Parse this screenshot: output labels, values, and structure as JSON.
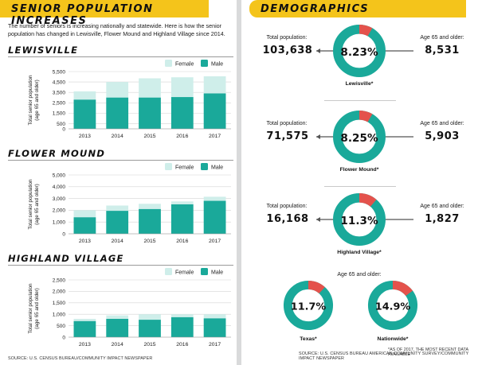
{
  "left": {
    "banner": "SENIOR POPULATION INCREASES",
    "intro": "The number of seniors is increasing nationally and statewide. Here is how the senior population has changed in Lewisville, Flower Mound and Highland Village since 2014.",
    "footer": "SOURCE: U.S. CENSUS BUREAU/COMMUNITY IMPACT NEWSPAPER"
  },
  "right": {
    "banner": "DEMOGRAPHICS",
    "footnote": "*AS OF 2017, THE MOST RECENT DATA AVAILABLE",
    "footer": "SOURCE: U.S. CENSUS BUREAU AMERICAN COMMUNITY SURVEY/COMMUNITY IMPACT NEWSPAPER",
    "labels": {
      "total_population": "Total population:",
      "age65": "Age 65 and older:",
      "age65_center": "Age 65 and older:"
    },
    "cities": [
      {
        "name": "Lewisville*",
        "total": "103,638",
        "percent_label": "8.23%",
        "percent": 8.23,
        "age65": "8,531"
      },
      {
        "name": "Flower Mound*",
        "total": "71,575",
        "percent_label": "8.25%",
        "percent": 8.25,
        "age65": "5,903"
      },
      {
        "name": "Highland Village*",
        "total": "16,168",
        "percent_label": "11.3%",
        "percent": 11.3,
        "age65": "1,827"
      }
    ],
    "comparisons": [
      {
        "name": "Texas*",
        "percent_label": "11.7%",
        "percent": 11.7
      },
      {
        "name": "Nationwide*",
        "percent_label": "14.9%",
        "percent": 14.9
      }
    ]
  },
  "colors": {
    "banner": "#f4c41b",
    "male": "#1aa99a",
    "female": "#cfeeea",
    "ring": "#1aa99a",
    "ring_highlight": "#e4524c",
    "arrow": "#555555"
  },
  "legend": {
    "female": "Female",
    "male": "Male"
  },
  "chart_data": [
    {
      "type": "bar",
      "title": "LEWISVILLE",
      "ylabel": "Total senior population (age 65 and older)",
      "categories": [
        "2013",
        "2014",
        "2015",
        "2016",
        "2017"
      ],
      "ylim": [
        0,
        5500
      ],
      "yticks": [
        "0",
        "500",
        "1,500",
        "2,500",
        "3,500",
        "4,500",
        "5,500"
      ],
      "ytick_values": [
        0,
        500,
        1500,
        2500,
        3500,
        4500,
        5500
      ],
      "series": [
        {
          "name": "Female",
          "values": [
            3600,
            4500,
            4850,
            4950,
            5050
          ]
        },
        {
          "name": "Male",
          "values": [
            2800,
            3000,
            3000,
            3050,
            3400
          ]
        }
      ]
    },
    {
      "type": "bar",
      "title": "FLOWER MOUND",
      "ylabel": "Total senior population (age 65 and older)",
      "categories": [
        "2013",
        "2014",
        "2015",
        "2016",
        "2017"
      ],
      "ylim": [
        0,
        5000
      ],
      "yticks": [
        "0",
        "1,000",
        "2,000",
        "3,000",
        "4,000",
        "5,000"
      ],
      "ytick_values": [
        0,
        1000,
        2000,
        3000,
        4000,
        5000
      ],
      "series": [
        {
          "name": "Female",
          "values": [
            2000,
            2400,
            2550,
            2750,
            3150
          ]
        },
        {
          "name": "Male",
          "values": [
            1400,
            1950,
            2100,
            2500,
            2800
          ]
        }
      ]
    },
    {
      "type": "bar",
      "title": "HIGHLAND VILLAGE",
      "ylabel": "Total senior population (age 65 and older)",
      "categories": [
        "2013",
        "2014",
        "2015",
        "2016",
        "2017"
      ],
      "ylim": [
        0,
        2500
      ],
      "yticks": [
        "0",
        "500",
        "1,000",
        "1,500",
        "2,000",
        "2,500"
      ],
      "ytick_values": [
        0,
        500,
        1000,
        1500,
        2000,
        2500
      ],
      "series": [
        {
          "name": "Female",
          "values": [
            800,
            950,
            1000,
            1000,
            1000
          ]
        },
        {
          "name": "Male",
          "values": [
            700,
            800,
            760,
            870,
            820
          ]
        }
      ]
    }
  ]
}
